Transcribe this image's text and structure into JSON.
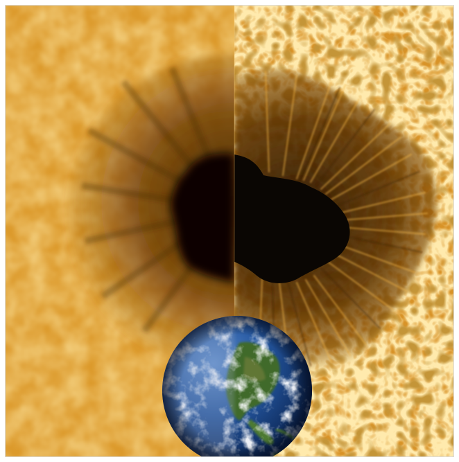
{
  "image": {
    "kind": "composite-photograph",
    "colors": {
      "photosphere_light": "#f6c45a",
      "photosphere_mid": "#dc9a2c",
      "photosphere_dark": "#a8650e",
      "penumbra": "#6b3c08",
      "umbra": "#0a0603",
      "ocean": "#1d4f9a",
      "cloud": "#f2f5f8",
      "land": "#3f6b2a"
    },
    "regions": [
      "left-half-blurred-sunspot",
      "right-half-sharp-sunspot",
      "earth-for-scale"
    ]
  }
}
